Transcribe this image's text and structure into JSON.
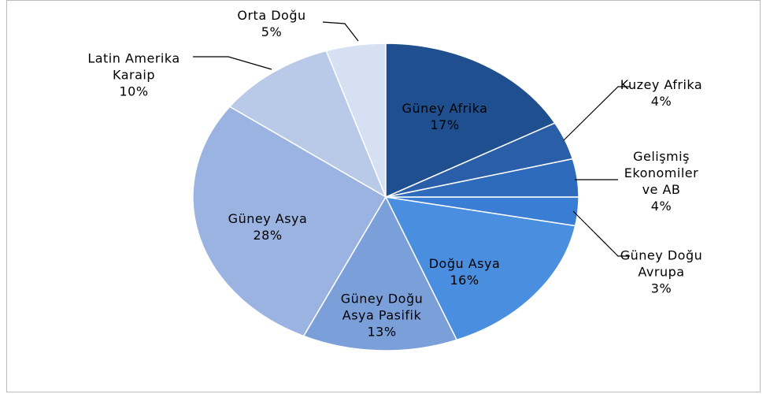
{
  "chart_data": {
    "type": "pie",
    "categories": [
      "Güney Afrika",
      "Kuzey Afrika",
      "Gelişmiş Ekonomiler ve AB",
      "Güney Doğu Avrupa",
      "Doğu Asya",
      "Güney Doğu Asya Pasifik",
      "Güney Asya",
      "Latin Amerika Karaip",
      "Orta Doğu"
    ],
    "values": [
      17,
      4,
      4,
      3,
      16,
      13,
      28,
      10,
      5
    ],
    "value_labels": [
      "17%",
      "4%",
      "4%",
      "3%",
      "16%",
      "13%",
      "28%",
      "10%",
      "5%"
    ],
    "colors": [
      "#1f4f8f",
      "#2a5ea8",
      "#2e6bbd",
      "#3a7dd4",
      "#4a8ee0",
      "#7b9fd9",
      "#9ab3e0",
      "#b9cae9",
      "#d5e0f3"
    ]
  }
}
